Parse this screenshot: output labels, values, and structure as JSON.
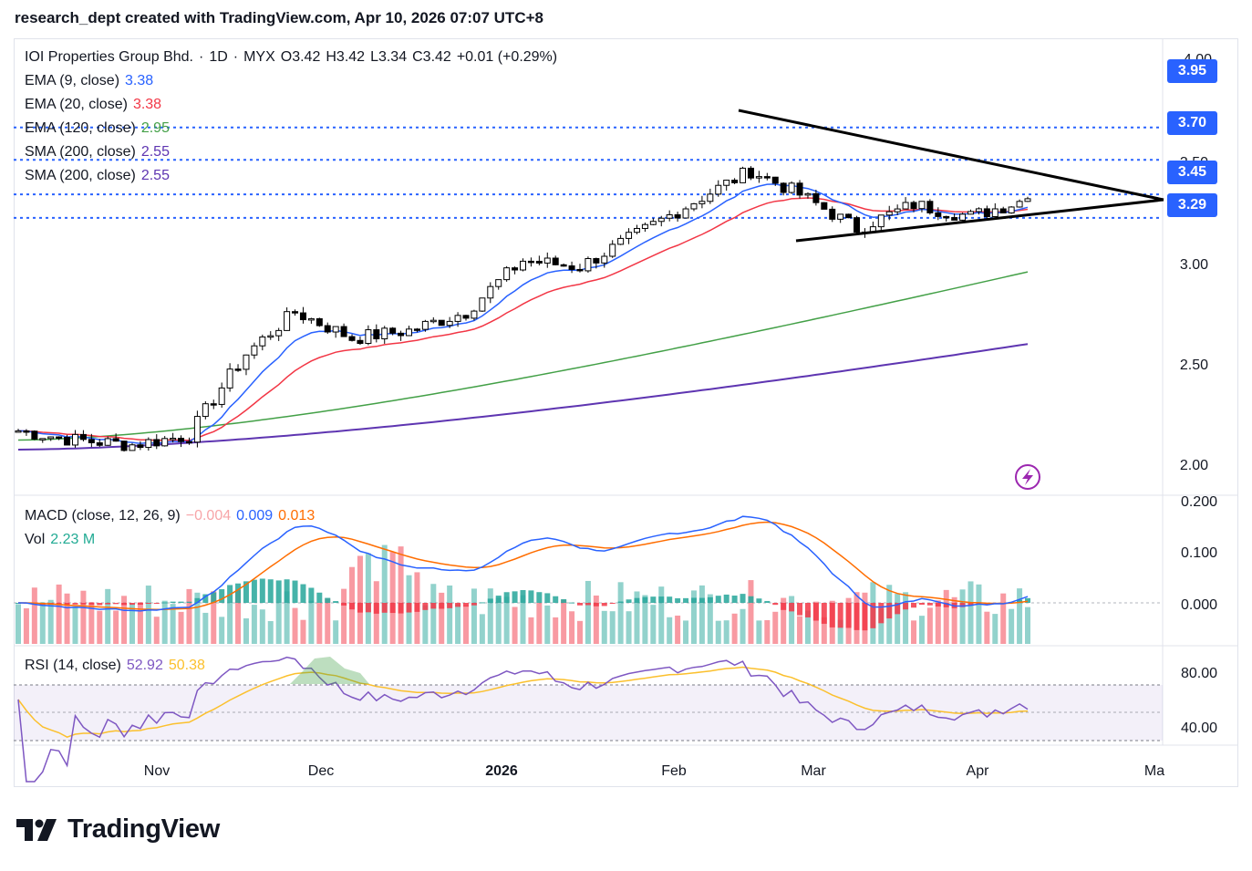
{
  "header": {
    "text": "research_dept created with TradingView.com, Apr 10, 2026 07:07 UTC+8"
  },
  "symbol_legend": {
    "name": "IOI Properties Group Bhd.",
    "sep": "·",
    "interval": "1D",
    "exchange": "MYX",
    "open": "O3.42",
    "high": "H3.42",
    "low": "L3.34",
    "close": "C3.42",
    "change": "+0.01 (+0.29%)"
  },
  "indicator_legend": [
    {
      "label": "EMA (9, close)",
      "value": "3.38",
      "color": "#2962ff"
    },
    {
      "label": "EMA (20, close)",
      "value": "3.38",
      "color": "#f23645"
    },
    {
      "label": "EMA (120, close)",
      "value": "2.95",
      "color": "#43a047"
    },
    {
      "label": "SMA (200, close)",
      "value": "2.55",
      "color": "#5e35b1"
    },
    {
      "label": "SMA (200, close)",
      "value": "2.55",
      "color": "#5e35b1"
    }
  ],
  "macd_legend": {
    "label": "MACD (close, 12, 26, 9)",
    "hist": "−0.004",
    "macd": "0.009",
    "signal": "0.013",
    "hist_color": "#f7a5a8",
    "macd_color": "#2962ff",
    "signal_color": "#ff6d00"
  },
  "vol_legend": {
    "label": "Vol",
    "value": "2.23 M",
    "color": "#22ab94"
  },
  "rsi_legend": {
    "label": "RSI (14, close)",
    "value": "52.92",
    "ma": "50.38",
    "color": "#7e57c2",
    "ma_color": "#fbc02d"
  },
  "price_axis": {
    "ticks": [
      "3.50",
      "3.00",
      "2.50",
      "2.00"
    ],
    "top_label": "4.00"
  },
  "price_levels": [
    {
      "label": "3.95",
      "value": 3.95
    },
    {
      "label": "3.70",
      "value": 3.7
    },
    {
      "label": "3.45",
      "value": 3.45
    },
    {
      "label": "3.29",
      "value": 3.29
    }
  ],
  "macd_axis": {
    "ticks": [
      "0.200",
      "0.100",
      "0.000"
    ]
  },
  "rsi_axis": {
    "ticks": [
      "80.00",
      "40.00"
    ]
  },
  "time_axis": {
    "labels": [
      "Nov",
      "Dec",
      "2026",
      "Feb",
      "Mar",
      "Apr",
      "Ma"
    ]
  },
  "footer": {
    "brand": "TradingView"
  },
  "colors": {
    "up": "#ffffff",
    "down": "#000000",
    "level_line": "#2962ff",
    "accent": "#2962ff"
  },
  "chart_data": [
    {
      "type": "candlestick",
      "title": "IOI Properties Group Bhd. · 1D · MYX",
      "y_scale": "log",
      "x_range": [
        "Oct 2025",
        "May 2026"
      ],
      "y_ticks": [
        2.0,
        2.5,
        3.0,
        3.5,
        4.0
      ],
      "last_ohlc": {
        "open": 3.42,
        "high": 3.42,
        "low": 3.34,
        "close": 3.42
      },
      "close_path": [
        {
          "date": "Oct 17",
          "close": 2.14
        },
        {
          "date": "Nov 1",
          "close": 2.1
        },
        {
          "date": "Nov 15",
          "close": 2.08
        },
        {
          "date": "Nov 25",
          "close": 2.12
        },
        {
          "date": "Dec 1",
          "close": 2.5
        },
        {
          "date": "Dec 3",
          "close": 2.72
        },
        {
          "date": "Dec 15",
          "close": 2.58
        },
        {
          "date": "Dec 31",
          "close": 2.62
        },
        {
          "date": "Jan 10",
          "close": 2.72
        },
        {
          "date": "Jan 15",
          "close": 3.02
        },
        {
          "date": "Jan 25",
          "close": 2.98
        },
        {
          "date": "Feb 5",
          "close": 3.18
        },
        {
          "date": "Feb 15",
          "close": 3.4
        },
        {
          "date": "Feb 20",
          "close": 3.62
        },
        {
          "date": "Mar 1",
          "close": 3.45
        },
        {
          "date": "Mar 10",
          "close": 3.22
        },
        {
          "date": "Mar 20",
          "close": 3.38
        },
        {
          "date": "Apr 1",
          "close": 3.3
        },
        {
          "date": "Apr 9",
          "close": 3.42
        }
      ],
      "series": [
        {
          "name": "EMA (9, close)",
          "last": 3.38
        },
        {
          "name": "EMA (20, close)",
          "last": 3.38
        },
        {
          "name": "EMA (120, close)",
          "last": 2.95
        },
        {
          "name": "SMA (200, close)",
          "last": 2.55
        }
      ],
      "levels": [
        3.95,
        3.7,
        3.45,
        3.29
      ],
      "annotation": "symmetrical triangle trendlines"
    },
    {
      "type": "line",
      "title": "MACD (close, 12, 26, 9)",
      "y_ticks": [
        0.0,
        0.1,
        0.2
      ],
      "last": {
        "histogram": -0.004,
        "macd": 0.009,
        "signal": 0.013
      }
    },
    {
      "type": "bar",
      "title": "Vol",
      "last": "2.23 M"
    },
    {
      "type": "line",
      "title": "RSI (14, close)",
      "y_ticks": [
        40,
        80
      ],
      "band": [
        30,
        70
      ],
      "last": {
        "rsi": 52.92,
        "ma": 50.38
      }
    }
  ]
}
